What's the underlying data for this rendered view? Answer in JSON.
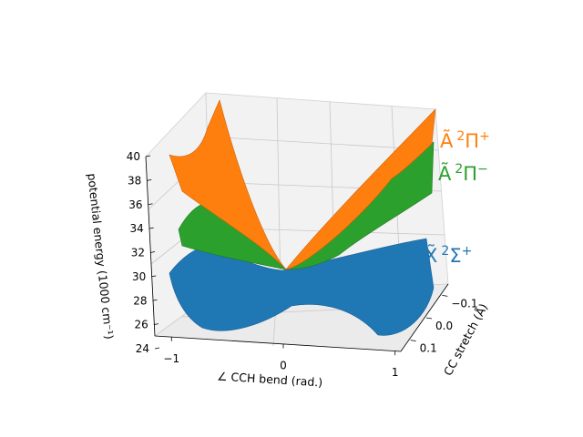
{
  "chart_data": {
    "type": "surface3d",
    "xlabel": "∠ CCH bend (rad.)",
    "ylabel": "CC stretch (Å)",
    "zlabel": "potential energy (1000 cm⁻¹)",
    "x_ticks": [
      "−1",
      "0",
      "1"
    ],
    "y_ticks": [
      "−0.1",
      "0.0",
      "0.1"
    ],
    "z_ticks": [
      "24",
      "26",
      "28",
      "30",
      "32",
      "34",
      "36",
      "38",
      "40"
    ],
    "xlim": [
      -1.1,
      1.1
    ],
    "ylim": [
      -0.15,
      0.15
    ],
    "zlim": [
      24,
      40
    ],
    "grid": true,
    "series": [
      {
        "name_tilde": "X̃",
        "name_sup": "2",
        "name_term": "Σ",
        "name_parity": "+",
        "color": "#1f77b4",
        "description_values": {
          "min": 24.6,
          "barrier_at_0": 27.8,
          "edge_max": 32.0
        }
      },
      {
        "name_tilde": "Ã",
        "name_sup": "2",
        "name_term": "Π",
        "name_parity": "−",
        "color": "#2ca02c",
        "description_values": {
          "min": 29.9,
          "edge_max": 37.0
        }
      },
      {
        "name_tilde": "Ã",
        "name_sup": "2",
        "name_term": "Π",
        "name_parity": "+",
        "color": "#ff7f0e",
        "description_values": {
          "min": 29.9,
          "edge_max": 40.8
        }
      }
    ]
  }
}
